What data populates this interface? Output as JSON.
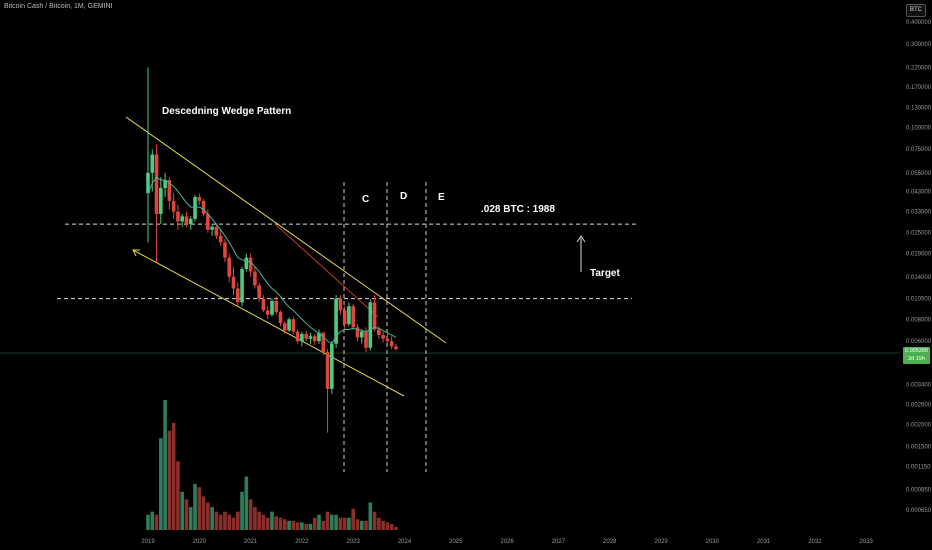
{
  "symbol_title": "Bitcoin Cash / Bitcoin, 1M, GEMINI",
  "currency_button": "BTC",
  "price_tag": {
    "price": "0.005390",
    "countdown": "2d 19h"
  },
  "colors": {
    "up": "#4fc983",
    "down": "#e0463b",
    "wedge": "#e6d94a",
    "ema": "#3fb8a0",
    "trend_red": "#c0392b",
    "background": "#000000"
  },
  "chart_data": {
    "type": "candlestick",
    "y_scale": "log",
    "ylim": [
      0.0005,
      0.4
    ],
    "yticks": [
      "0.400000",
      "0.300000",
      "0.220000",
      "0.170000",
      "0.130000",
      "0.100000",
      "0.075000",
      "0.055000",
      "0.043000",
      "0.033000",
      "0.025000",
      "0.019000",
      "0.014000",
      "0.010500",
      "0.008000",
      "0.006000",
      "0.003400",
      "0.002600",
      "0.002000",
      "0.001500",
      "0.001150",
      "0.000850",
      "0.000650"
    ],
    "xticks": [
      "2019",
      "2020",
      "2021",
      "2022",
      "2023",
      "2024",
      "2025",
      "2026",
      "2027",
      "2028",
      "2029",
      "2030",
      "2031",
      "2032",
      "2033"
    ],
    "candles": [
      {
        "o": 0.042,
        "h": 0.22,
        "l": 0.022,
        "c": 0.055,
        "v": 10
      },
      {
        "o": 0.055,
        "h": 0.075,
        "l": 0.043,
        "c": 0.07,
        "v": 12
      },
      {
        "o": 0.07,
        "h": 0.08,
        "l": 0.017,
        "c": 0.032,
        "v": 10
      },
      {
        "o": 0.032,
        "h": 0.052,
        "l": 0.028,
        "c": 0.045,
        "v": 60
      },
      {
        "o": 0.045,
        "h": 0.055,
        "l": 0.04,
        "c": 0.05,
        "v": 85
      },
      {
        "o": 0.05,
        "h": 0.052,
        "l": 0.034,
        "c": 0.038,
        "v": 65
      },
      {
        "o": 0.038,
        "h": 0.042,
        "l": 0.03,
        "c": 0.033,
        "v": 70
      },
      {
        "o": 0.033,
        "h": 0.036,
        "l": 0.026,
        "c": 0.029,
        "v": 45
      },
      {
        "o": 0.029,
        "h": 0.032,
        "l": 0.027,
        "c": 0.031,
        "v": 25
      },
      {
        "o": 0.031,
        "h": 0.033,
        "l": 0.027,
        "c": 0.028,
        "v": 20
      },
      {
        "o": 0.028,
        "h": 0.031,
        "l": 0.026,
        "c": 0.03,
        "v": 15
      },
      {
        "o": 0.03,
        "h": 0.041,
        "l": 0.029,
        "c": 0.04,
        "v": 30
      },
      {
        "o": 0.04,
        "h": 0.042,
        "l": 0.036,
        "c": 0.038,
        "v": 28
      },
      {
        "o": 0.038,
        "h": 0.039,
        "l": 0.031,
        "c": 0.032,
        "v": 22
      },
      {
        "o": 0.032,
        "h": 0.034,
        "l": 0.025,
        "c": 0.026,
        "v": 18
      },
      {
        "o": 0.026,
        "h": 0.028,
        "l": 0.024,
        "c": 0.027,
        "v": 15
      },
      {
        "o": 0.027,
        "h": 0.028,
        "l": 0.023,
        "c": 0.024,
        "v": 12
      },
      {
        "o": 0.024,
        "h": 0.026,
        "l": 0.021,
        "c": 0.022,
        "v": 10
      },
      {
        "o": 0.022,
        "h": 0.023,
        "l": 0.017,
        "c": 0.018,
        "v": 12
      },
      {
        "o": 0.018,
        "h": 0.019,
        "l": 0.013,
        "c": 0.014,
        "v": 10
      },
      {
        "o": 0.014,
        "h": 0.016,
        "l": 0.011,
        "c": 0.012,
        "v": 8
      },
      {
        "o": 0.012,
        "h": 0.013,
        "l": 0.0095,
        "c": 0.01,
        "v": 12
      },
      {
        "o": 0.01,
        "h": 0.016,
        "l": 0.0095,
        "c": 0.0155,
        "v": 25
      },
      {
        "o": 0.0155,
        "h": 0.019,
        "l": 0.015,
        "c": 0.018,
        "v": 35
      },
      {
        "o": 0.018,
        "h": 0.019,
        "l": 0.014,
        "c": 0.015,
        "v": 20
      },
      {
        "o": 0.015,
        "h": 0.016,
        "l": 0.012,
        "c": 0.0125,
        "v": 15
      },
      {
        "o": 0.0125,
        "h": 0.013,
        "l": 0.01,
        "c": 0.0105,
        "v": 12
      },
      {
        "o": 0.0105,
        "h": 0.011,
        "l": 0.0088,
        "c": 0.009,
        "v": 10
      },
      {
        "o": 0.009,
        "h": 0.0095,
        "l": 0.008,
        "c": 0.0085,
        "v": 8
      },
      {
        "o": 0.0085,
        "h": 0.0105,
        "l": 0.0083,
        "c": 0.0102,
        "v": 12
      },
      {
        "o": 0.0102,
        "h": 0.0108,
        "l": 0.0085,
        "c": 0.0088,
        "v": 9
      },
      {
        "o": 0.0088,
        "h": 0.009,
        "l": 0.0073,
        "c": 0.0076,
        "v": 8
      },
      {
        "o": 0.0076,
        "h": 0.0078,
        "l": 0.0066,
        "c": 0.0069,
        "v": 7
      },
      {
        "o": 0.0069,
        "h": 0.0082,
        "l": 0.0068,
        "c": 0.008,
        "v": 6
      },
      {
        "o": 0.008,
        "h": 0.0083,
        "l": 0.0066,
        "c": 0.0068,
        "v": 6
      },
      {
        "o": 0.0068,
        "h": 0.007,
        "l": 0.0058,
        "c": 0.006,
        "v": 5
      },
      {
        "o": 0.006,
        "h": 0.0068,
        "l": 0.0056,
        "c": 0.0066,
        "v": 5
      },
      {
        "o": 0.0066,
        "h": 0.0069,
        "l": 0.006,
        "c": 0.0062,
        "v": 4
      },
      {
        "o": 0.0062,
        "h": 0.0067,
        "l": 0.0058,
        "c": 0.0064,
        "v": 4
      },
      {
        "o": 0.0064,
        "h": 0.0066,
        "l": 0.0057,
        "c": 0.006,
        "v": 8
      },
      {
        "o": 0.006,
        "h": 0.007,
        "l": 0.0058,
        "c": 0.0067,
        "v": 10
      },
      {
        "o": 0.0067,
        "h": 0.0068,
        "l": 0.005,
        "c": 0.0052,
        "v": 6
      },
      {
        "o": 0.0052,
        "h": 0.0054,
        "l": 0.0018,
        "c": 0.0032,
        "v": 12
      },
      {
        "o": 0.0032,
        "h": 0.006,
        "l": 0.003,
        "c": 0.0058,
        "v": 10
      },
      {
        "o": 0.0058,
        "h": 0.011,
        "l": 0.0055,
        "c": 0.0105,
        "v": 10
      },
      {
        "o": 0.0105,
        "h": 0.011,
        "l": 0.0085,
        "c": 0.009,
        "v": 8
      },
      {
        "o": 0.009,
        "h": 0.0095,
        "l": 0.007,
        "c": 0.0075,
        "v": 8
      },
      {
        "o": 0.0075,
        "h": 0.01,
        "l": 0.0073,
        "c": 0.0095,
        "v": 8
      },
      {
        "o": 0.0095,
        "h": 0.0098,
        "l": 0.007,
        "c": 0.0072,
        "v": 14
      },
      {
        "o": 0.0072,
        "h": 0.0075,
        "l": 0.006,
        "c": 0.0063,
        "v": 7
      },
      {
        "o": 0.0063,
        "h": 0.007,
        "l": 0.0058,
        "c": 0.0068,
        "v": 6
      },
      {
        "o": 0.0068,
        "h": 0.0072,
        "l": 0.0052,
        "c": 0.0055,
        "v": 6
      },
      {
        "o": 0.0055,
        "h": 0.0104,
        "l": 0.0053,
        "c": 0.01,
        "v": 18
      },
      {
        "o": 0.01,
        "h": 0.011,
        "l": 0.0068,
        "c": 0.007,
        "v": 12
      },
      {
        "o": 0.007,
        "h": 0.0073,
        "l": 0.0062,
        "c": 0.0065,
        "v": 8
      },
      {
        "o": 0.0065,
        "h": 0.0068,
        "l": 0.0059,
        "c": 0.0062,
        "v": 6
      },
      {
        "o": 0.0062,
        "h": 0.0067,
        "l": 0.0058,
        "c": 0.006,
        "v": 5
      },
      {
        "o": 0.006,
        "h": 0.0064,
        "l": 0.0054,
        "c": 0.0056,
        "v": 4
      },
      {
        "o": 0.0056,
        "h": 0.0058,
        "l": 0.0053,
        "c": 0.0054,
        "v": 2
      }
    ],
    "ema": [
      0.042,
      0.048,
      0.052,
      0.05,
      0.05,
      0.048,
      0.046,
      0.043,
      0.04,
      0.037,
      0.035,
      0.035,
      0.035,
      0.034,
      0.032,
      0.03,
      0.028,
      0.026,
      0.024,
      0.022,
      0.02,
      0.018,
      0.0175,
      0.0172,
      0.017,
      0.016,
      0.015,
      0.0138,
      0.0128,
      0.012,
      0.0115,
      0.0108,
      0.01,
      0.0094,
      0.009,
      0.0085,
      0.008,
      0.0076,
      0.0072,
      0.0069,
      0.0066,
      0.0064,
      0.006,
      0.0058,
      0.0064,
      0.0068,
      0.007,
      0.007,
      0.0071,
      0.007,
      0.0069,
      0.0068,
      0.007,
      0.0072,
      0.0071,
      0.0069,
      0.0067,
      0.0065,
      0.0063
    ],
    "annotations": {
      "title": "Descedning Wedge Pattern",
      "phase_labels": [
        "C",
        "D",
        "E"
      ],
      "target_label": ".028 BTC : 1988",
      "target_text": "Target",
      "upper_level": 0.028,
      "lower_level": 0.0105
    }
  }
}
